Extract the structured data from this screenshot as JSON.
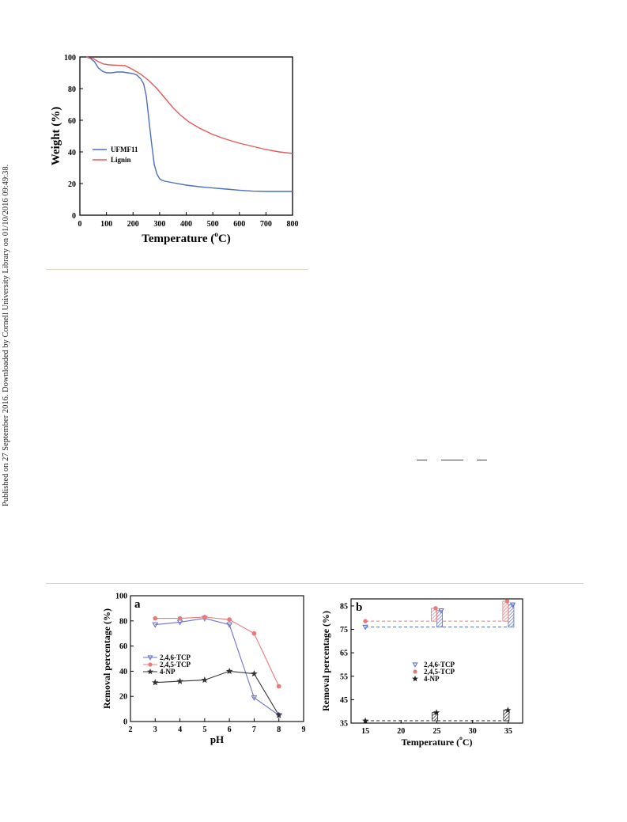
{
  "side_note": "Published on 27 September 2016. Downloaded by Cornell University Library on 01/10/2016 09:49:38.",
  "chart_data": [
    {
      "type": "line",
      "xlabel": "Temperature (°C)",
      "ylabel": "Weight (%)",
      "xlim": [
        0,
        800
      ],
      "ylim": [
        0,
        100
      ],
      "xticks": [
        0,
        100,
        200,
        300,
        400,
        500,
        600,
        700,
        800
      ],
      "yticks": [
        0,
        20,
        40,
        60,
        80,
        100
      ],
      "legend_position": "lower-left",
      "series": [
        {
          "name": "UFMF11",
          "color": "#4a6fc0",
          "x": [
            25,
            40,
            55,
            70,
            85,
            100,
            120,
            140,
            160,
            180,
            200,
            215,
            230,
            240,
            250,
            260,
            270,
            280,
            290,
            300,
            310,
            320,
            350,
            400,
            450,
            500,
            550,
            600,
            650,
            700,
            750,
            800
          ],
          "y": [
            100,
            99,
            97,
            93,
            91,
            90,
            90,
            90.5,
            90.5,
            90,
            89.5,
            88.5,
            86,
            83,
            75,
            60,
            45,
            32,
            26,
            23,
            22,
            21.5,
            20.5,
            19,
            18,
            17.2,
            16.5,
            15.8,
            15.2,
            15,
            15,
            15
          ]
        },
        {
          "name": "Lignin",
          "color": "#e35a5a",
          "x": [
            25,
            50,
            70,
            90,
            110,
            140,
            170,
            200,
            230,
            260,
            290,
            320,
            350,
            380,
            410,
            450,
            500,
            550,
            600,
            650,
            700,
            750,
            800
          ],
          "y": [
            100,
            99,
            97,
            95.5,
            95,
            94.8,
            94.5,
            92,
            89,
            85,
            80,
            74,
            68,
            63,
            59,
            55,
            51,
            48,
            45.5,
            43.5,
            41.5,
            40,
            39
          ]
        }
      ]
    },
    {
      "type": "line",
      "panel_label": "a",
      "xlabel": "pH",
      "ylabel": "Removal percentage (%)",
      "xlim": [
        2,
        9
      ],
      "ylim": [
        0,
        100
      ],
      "xticks": [
        2,
        3,
        4,
        5,
        6,
        7,
        8,
        9
      ],
      "yticks": [
        0,
        20,
        40,
        60,
        80,
        100
      ],
      "legend_position": "center-left",
      "series": [
        {
          "name": "2,4,6-TCP",
          "color": "#6a73c8",
          "marker": "triangle-down",
          "x": [
            3,
            4,
            5,
            6,
            7,
            8
          ],
          "y": [
            77,
            79,
            82,
            77,
            19,
            5
          ]
        },
        {
          "name": "2,4,5-TCP",
          "color": "#e87a7a",
          "marker": "circle",
          "x": [
            3,
            4,
            5,
            6,
            7,
            8
          ],
          "y": [
            82,
            82,
            83,
            81,
            70,
            28
          ]
        },
        {
          "name": "4-NP",
          "color": "#333333",
          "marker": "star",
          "x": [
            3,
            4,
            5,
            6,
            7,
            8
          ],
          "y": [
            31,
            32,
            33,
            40,
            38,
            5
          ]
        }
      ]
    },
    {
      "type": "bar",
      "panel_label": "b",
      "xlabel": "Temperature (°C)",
      "ylabel": "Removal percentage (%)",
      "xlim": [
        13,
        37
      ],
      "ylim": [
        35,
        88
      ],
      "xticks": [
        15,
        20,
        25,
        30,
        35
      ],
      "yticks": [
        35,
        45,
        55,
        65,
        75,
        85
      ],
      "legend_position": "center-right",
      "series": [
        {
          "name": "2,4,6-TCP",
          "color": "#5a6fc8",
          "marker": "triangle-down",
          "x": [
            15,
            25,
            35
          ],
          "y": [
            76,
            83,
            85.5
          ]
        },
        {
          "name": "2,4,5-TCP",
          "color": "#e87a7a",
          "marker": "circle",
          "x": [
            15,
            25,
            35
          ],
          "y": [
            78.5,
            84,
            87
          ]
        },
        {
          "name": "4-NP",
          "color": "#222222",
          "marker": "star",
          "x": [
            15,
            25,
            35
          ],
          "y": [
            36,
            39.5,
            40.5
          ]
        }
      ],
      "baselines": [
        {
          "series": "2,4,5-TCP",
          "y": 78.5
        },
        {
          "series": "2,4,6-TCP",
          "y": 76
        },
        {
          "series": "4-NP",
          "y": 36
        }
      ]
    }
  ]
}
